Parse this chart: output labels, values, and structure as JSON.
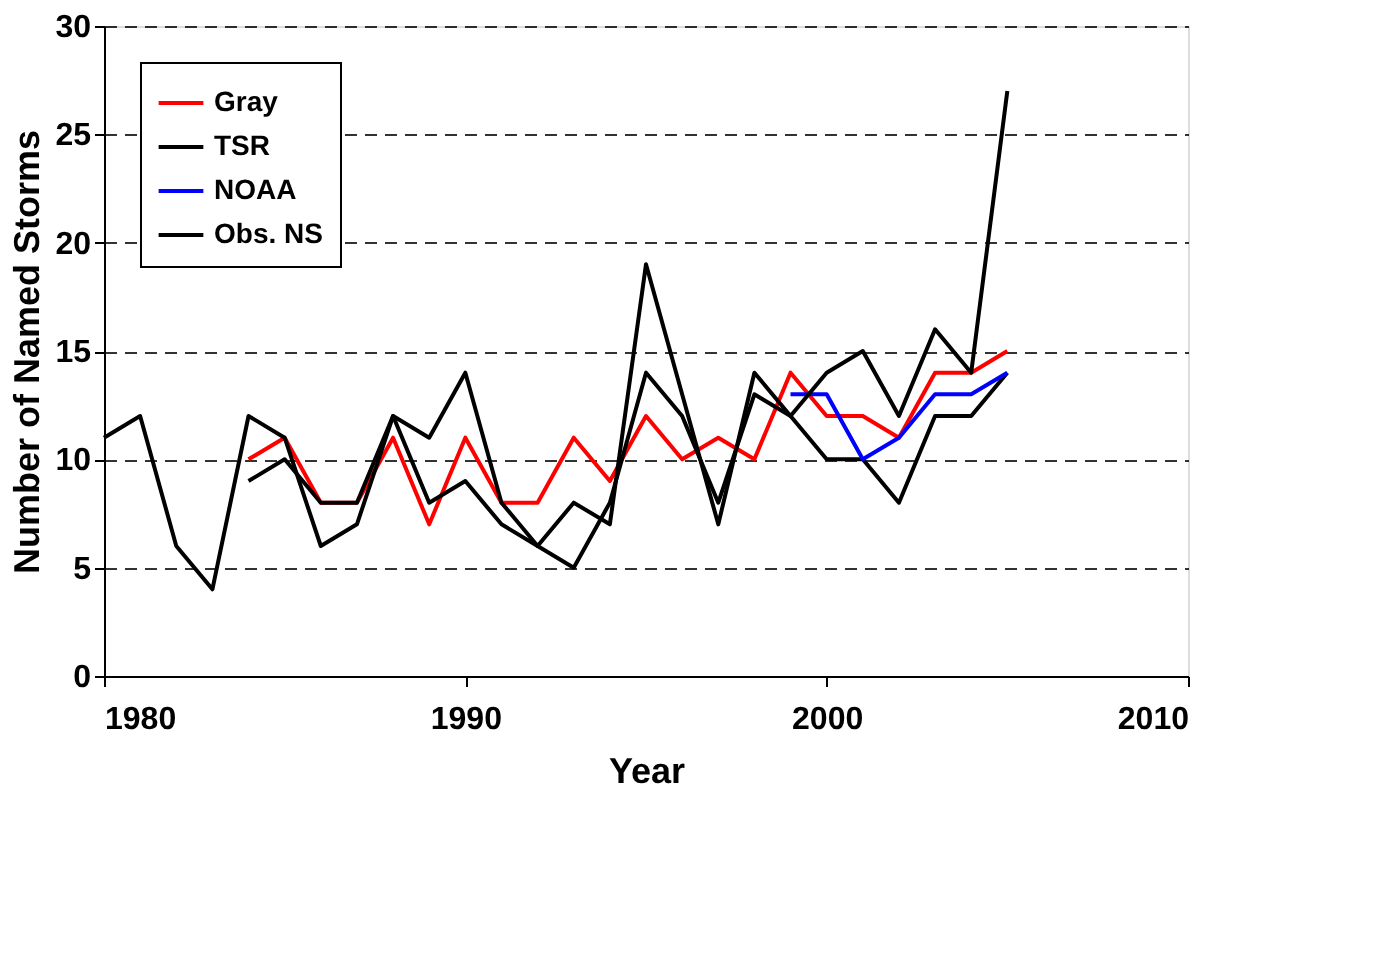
{
  "chart_data": {
    "type": "line",
    "xlabel": "Year",
    "ylabel": "Number of Named Storms",
    "xlim": [
      1980,
      2010
    ],
    "xticks": [
      1980,
      1990,
      2000,
      2010
    ],
    "ylim": [
      0,
      30
    ],
    "yticks": [
      0,
      5,
      10,
      15,
      20,
      25,
      30
    ],
    "grid": "y",
    "legend": "top left",
    "marker": "none",
    "series": [
      {
        "name": "Gray",
        "color": "#ff0000",
        "x": [
          1984,
          1985,
          1986,
          1987,
          1988,
          1989,
          1990,
          1991,
          1992,
          1993,
          1994,
          1995,
          1996,
          1997,
          1998,
          1999,
          2000,
          2001,
          2002,
          2003,
          2004,
          2005
        ],
        "values": [
          10,
          11,
          8,
          8,
          11,
          7,
          11,
          8,
          8,
          11,
          9,
          12,
          10,
          11,
          10,
          14,
          12,
          12,
          11,
          14,
          14,
          15
        ]
      },
      {
        "name": "TSR",
        "color": "#000000",
        "x": [
          1984,
          1985,
          1986,
          1987,
          1988,
          1989,
          1990,
          1991,
          1992,
          1993,
          1994,
          1995,
          1996,
          1997,
          1998,
          1999,
          2000,
          2001,
          2002,
          2003,
          2004,
          2005
        ],
        "values": [
          9,
          10,
          8,
          8,
          12,
          8,
          9,
          7,
          6,
          5,
          8,
          14,
          12,
          8,
          13,
          12,
          10,
          10,
          8,
          12,
          12,
          14
        ]
      },
      {
        "name": "NOAA",
        "color": "#0000ff",
        "x": [
          1999,
          2000,
          2001,
          2002,
          2003,
          2004,
          2005
        ],
        "values": [
          13,
          13,
          10,
          11,
          13,
          13,
          14
        ]
      },
      {
        "name": "Obs. NS",
        "color": "#000000",
        "x": [
          1980,
          1981,
          1982,
          1983,
          1984,
          1985,
          1986,
          1987,
          1988,
          1989,
          1990,
          1991,
          1992,
          1993,
          1994,
          1995,
          1996,
          1997,
          1998,
          1999,
          2000,
          2001,
          2002,
          2003,
          2004,
          2005
        ],
        "values": [
          11,
          12,
          6,
          4,
          12,
          11,
          6,
          7,
          12,
          11,
          14,
          8,
          6,
          8,
          7,
          19,
          13,
          7,
          14,
          12,
          14,
          15,
          12,
          16,
          14,
          27
        ]
      }
    ]
  }
}
